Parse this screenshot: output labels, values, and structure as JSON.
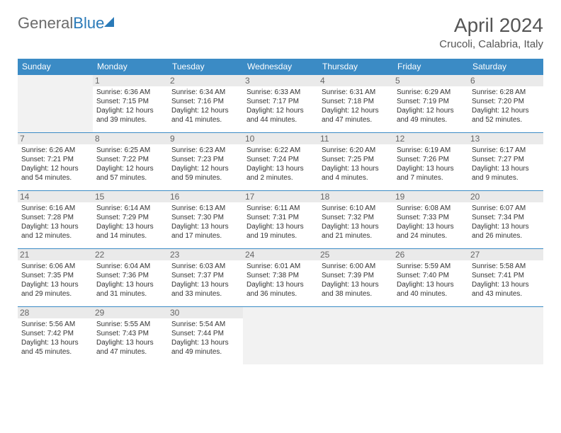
{
  "logo": {
    "part1": "General",
    "part2": "Blue"
  },
  "title": "April 2024",
  "location": "Crucoli, Calabria, Italy",
  "dayHeaders": [
    "Sunday",
    "Monday",
    "Tuesday",
    "Wednesday",
    "Thursday",
    "Friday",
    "Saturday"
  ],
  "colors": {
    "headerBg": "#3b8bc5",
    "headerText": "#ffffff",
    "border": "#3b8bc5",
    "dayNumBg": "#eaeaea",
    "emptyBg": "#f2f2f2",
    "logoGray": "#6b6b6b",
    "logoBlue": "#2a7ab8",
    "titleColor": "#555555"
  },
  "weeks": [
    [
      null,
      {
        "n": "1",
        "sr": "Sunrise: 6:36 AM",
        "ss": "Sunset: 7:15 PM",
        "d1": "Daylight: 12 hours",
        "d2": "and 39 minutes."
      },
      {
        "n": "2",
        "sr": "Sunrise: 6:34 AM",
        "ss": "Sunset: 7:16 PM",
        "d1": "Daylight: 12 hours",
        "d2": "and 41 minutes."
      },
      {
        "n": "3",
        "sr": "Sunrise: 6:33 AM",
        "ss": "Sunset: 7:17 PM",
        "d1": "Daylight: 12 hours",
        "d2": "and 44 minutes."
      },
      {
        "n": "4",
        "sr": "Sunrise: 6:31 AM",
        "ss": "Sunset: 7:18 PM",
        "d1": "Daylight: 12 hours",
        "d2": "and 47 minutes."
      },
      {
        "n": "5",
        "sr": "Sunrise: 6:29 AM",
        "ss": "Sunset: 7:19 PM",
        "d1": "Daylight: 12 hours",
        "d2": "and 49 minutes."
      },
      {
        "n": "6",
        "sr": "Sunrise: 6:28 AM",
        "ss": "Sunset: 7:20 PM",
        "d1": "Daylight: 12 hours",
        "d2": "and 52 minutes."
      }
    ],
    [
      {
        "n": "7",
        "sr": "Sunrise: 6:26 AM",
        "ss": "Sunset: 7:21 PM",
        "d1": "Daylight: 12 hours",
        "d2": "and 54 minutes."
      },
      {
        "n": "8",
        "sr": "Sunrise: 6:25 AM",
        "ss": "Sunset: 7:22 PM",
        "d1": "Daylight: 12 hours",
        "d2": "and 57 minutes."
      },
      {
        "n": "9",
        "sr": "Sunrise: 6:23 AM",
        "ss": "Sunset: 7:23 PM",
        "d1": "Daylight: 12 hours",
        "d2": "and 59 minutes."
      },
      {
        "n": "10",
        "sr": "Sunrise: 6:22 AM",
        "ss": "Sunset: 7:24 PM",
        "d1": "Daylight: 13 hours",
        "d2": "and 2 minutes."
      },
      {
        "n": "11",
        "sr": "Sunrise: 6:20 AM",
        "ss": "Sunset: 7:25 PM",
        "d1": "Daylight: 13 hours",
        "d2": "and 4 minutes."
      },
      {
        "n": "12",
        "sr": "Sunrise: 6:19 AM",
        "ss": "Sunset: 7:26 PM",
        "d1": "Daylight: 13 hours",
        "d2": "and 7 minutes."
      },
      {
        "n": "13",
        "sr": "Sunrise: 6:17 AM",
        "ss": "Sunset: 7:27 PM",
        "d1": "Daylight: 13 hours",
        "d2": "and 9 minutes."
      }
    ],
    [
      {
        "n": "14",
        "sr": "Sunrise: 6:16 AM",
        "ss": "Sunset: 7:28 PM",
        "d1": "Daylight: 13 hours",
        "d2": "and 12 minutes."
      },
      {
        "n": "15",
        "sr": "Sunrise: 6:14 AM",
        "ss": "Sunset: 7:29 PM",
        "d1": "Daylight: 13 hours",
        "d2": "and 14 minutes."
      },
      {
        "n": "16",
        "sr": "Sunrise: 6:13 AM",
        "ss": "Sunset: 7:30 PM",
        "d1": "Daylight: 13 hours",
        "d2": "and 17 minutes."
      },
      {
        "n": "17",
        "sr": "Sunrise: 6:11 AM",
        "ss": "Sunset: 7:31 PM",
        "d1": "Daylight: 13 hours",
        "d2": "and 19 minutes."
      },
      {
        "n": "18",
        "sr": "Sunrise: 6:10 AM",
        "ss": "Sunset: 7:32 PM",
        "d1": "Daylight: 13 hours",
        "d2": "and 21 minutes."
      },
      {
        "n": "19",
        "sr": "Sunrise: 6:08 AM",
        "ss": "Sunset: 7:33 PM",
        "d1": "Daylight: 13 hours",
        "d2": "and 24 minutes."
      },
      {
        "n": "20",
        "sr": "Sunrise: 6:07 AM",
        "ss": "Sunset: 7:34 PM",
        "d1": "Daylight: 13 hours",
        "d2": "and 26 minutes."
      }
    ],
    [
      {
        "n": "21",
        "sr": "Sunrise: 6:06 AM",
        "ss": "Sunset: 7:35 PM",
        "d1": "Daylight: 13 hours",
        "d2": "and 29 minutes."
      },
      {
        "n": "22",
        "sr": "Sunrise: 6:04 AM",
        "ss": "Sunset: 7:36 PM",
        "d1": "Daylight: 13 hours",
        "d2": "and 31 minutes."
      },
      {
        "n": "23",
        "sr": "Sunrise: 6:03 AM",
        "ss": "Sunset: 7:37 PM",
        "d1": "Daylight: 13 hours",
        "d2": "and 33 minutes."
      },
      {
        "n": "24",
        "sr": "Sunrise: 6:01 AM",
        "ss": "Sunset: 7:38 PM",
        "d1": "Daylight: 13 hours",
        "d2": "and 36 minutes."
      },
      {
        "n": "25",
        "sr": "Sunrise: 6:00 AM",
        "ss": "Sunset: 7:39 PM",
        "d1": "Daylight: 13 hours",
        "d2": "and 38 minutes."
      },
      {
        "n": "26",
        "sr": "Sunrise: 5:59 AM",
        "ss": "Sunset: 7:40 PM",
        "d1": "Daylight: 13 hours",
        "d2": "and 40 minutes."
      },
      {
        "n": "27",
        "sr": "Sunrise: 5:58 AM",
        "ss": "Sunset: 7:41 PM",
        "d1": "Daylight: 13 hours",
        "d2": "and 43 minutes."
      }
    ],
    [
      {
        "n": "28",
        "sr": "Sunrise: 5:56 AM",
        "ss": "Sunset: 7:42 PM",
        "d1": "Daylight: 13 hours",
        "d2": "and 45 minutes."
      },
      {
        "n": "29",
        "sr": "Sunrise: 5:55 AM",
        "ss": "Sunset: 7:43 PM",
        "d1": "Daylight: 13 hours",
        "d2": "and 47 minutes."
      },
      {
        "n": "30",
        "sr": "Sunrise: 5:54 AM",
        "ss": "Sunset: 7:44 PM",
        "d1": "Daylight: 13 hours",
        "d2": "and 49 minutes."
      },
      null,
      null,
      null,
      null
    ]
  ]
}
